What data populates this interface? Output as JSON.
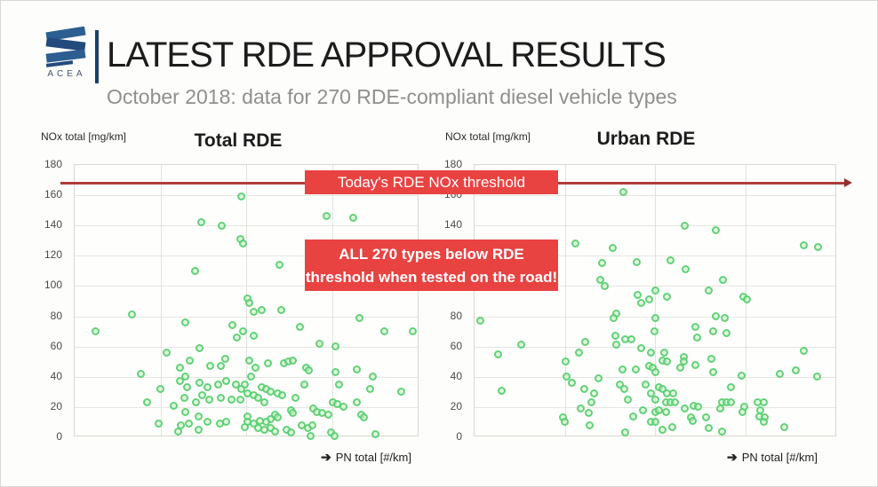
{
  "slide": {
    "logo_text": "ACEA",
    "title": "LATEST RDE APPROVAL RESULTS",
    "subtitle": "October 2018: data for 270 RDE-compliant diesel vehicle types"
  },
  "annotations": {
    "threshold_label": "Today's RDE NOx threshold",
    "callout_line1": "ALL 270 types below RDE",
    "callout_line2": "threshold when tested on the road!",
    "threshold_value_mg_per_km": 168
  },
  "colors": {
    "accent_red_box": "#e84341",
    "threshold_line_red": "#b13c3c",
    "dot_green_ring": "#55cd6e",
    "logo_blue": "#2d5e91",
    "divider_navy": "#1e3f63",
    "subtitle_gray": "#8f8f8f"
  },
  "chart_data": [
    {
      "type": "scatter",
      "title": "Total RDE",
      "ylabel": "NOx total [mg/km]",
      "xlabel": "PN total [#/km]",
      "ylim": [
        0,
        180
      ],
      "yticks": [
        0,
        20,
        40,
        60,
        80,
        100,
        120,
        140,
        160,
        180
      ],
      "x_axis_note": "no x tick labels shown; x coded as percent of axis width",
      "xgrid_pct": [
        25,
        50,
        75
      ],
      "grid": true,
      "legend": "none",
      "threshold_y": 168,
      "points": [
        [
          48.7,
          159
        ],
        [
          36.9,
          142
        ],
        [
          42.8,
          140
        ],
        [
          48.2,
          131
        ],
        [
          49.0,
          128
        ],
        [
          35.1,
          110
        ],
        [
          73.5,
          146
        ],
        [
          81.2,
          145
        ],
        [
          59.8,
          114
        ],
        [
          50.3,
          92
        ],
        [
          16.8,
          81
        ],
        [
          32.2,
          76
        ],
        [
          6.2,
          70
        ],
        [
          46.1,
          74
        ],
        [
          49.2,
          70
        ],
        [
          47.4,
          66
        ],
        [
          26.8,
          56
        ],
        [
          36.3,
          59
        ],
        [
          33.5,
          51
        ],
        [
          43.8,
          52
        ],
        [
          30.7,
          46
        ],
        [
          39.4,
          47
        ],
        [
          42.5,
          47
        ],
        [
          19.3,
          42
        ],
        [
          32.2,
          40
        ],
        [
          36.3,
          36
        ],
        [
          44.3,
          37
        ],
        [
          46.9,
          35
        ],
        [
          30.7,
          37
        ],
        [
          32.7,
          33
        ],
        [
          25.0,
          32
        ],
        [
          38.7,
          33
        ],
        [
          41.8,
          35
        ],
        [
          48.7,
          32
        ],
        [
          50.3,
          29
        ],
        [
          21.1,
          23
        ],
        [
          28.9,
          21
        ],
        [
          32.0,
          26
        ],
        [
          37.1,
          28
        ],
        [
          39.2,
          25
        ],
        [
          35.3,
          23
        ],
        [
          42.5,
          26
        ],
        [
          45.6,
          25
        ],
        [
          48.2,
          25
        ],
        [
          32.2,
          17
        ],
        [
          36.1,
          14
        ],
        [
          24.5,
          9
        ],
        [
          30.9,
          8
        ],
        [
          33.2,
          9
        ],
        [
          38.7,
          10
        ],
        [
          42.3,
          9
        ],
        [
          44.3,
          10
        ],
        [
          50.3,
          14
        ],
        [
          30.2,
          4
        ],
        [
          36.1,
          5
        ],
        [
          50.8,
          89
        ],
        [
          52.1,
          83
        ],
        [
          54.6,
          84
        ],
        [
          60.3,
          84
        ],
        [
          83.0,
          79
        ],
        [
          65.7,
          73
        ],
        [
          52.1,
          67
        ],
        [
          90.2,
          70
        ],
        [
          98.5,
          70
        ],
        [
          71.4,
          62
        ],
        [
          76.0,
          60
        ],
        [
          50.8,
          51
        ],
        [
          56.4,
          49
        ],
        [
          61.1,
          49
        ],
        [
          62.4,
          50
        ],
        [
          63.7,
          51
        ],
        [
          67.5,
          46
        ],
        [
          68.3,
          44
        ],
        [
          52.6,
          46
        ],
        [
          51.5,
          40
        ],
        [
          76.0,
          43
        ],
        [
          82.2,
          45
        ],
        [
          86.9,
          40
        ],
        [
          49.5,
          35
        ],
        [
          77.1,
          35
        ],
        [
          86.1,
          32
        ],
        [
          95.1,
          30
        ],
        [
          54.6,
          33
        ],
        [
          55.9,
          32
        ],
        [
          57.2,
          30
        ],
        [
          59.3,
          29
        ],
        [
          60.6,
          28
        ],
        [
          52.1,
          28
        ],
        [
          53.4,
          26
        ],
        [
          55.2,
          23
        ],
        [
          64.4,
          26
        ],
        [
          67.0,
          35
        ],
        [
          75.3,
          23
        ],
        [
          76.5,
          22
        ],
        [
          78.4,
          20
        ],
        [
          82.2,
          23
        ],
        [
          83.5,
          15
        ],
        [
          84.3,
          13
        ],
        [
          63.1,
          18
        ],
        [
          63.7,
          16
        ],
        [
          69.6,
          19
        ],
        [
          70.6,
          17
        ],
        [
          72.2,
          16
        ],
        [
          74.0,
          15
        ],
        [
          58.5,
          15
        ],
        [
          59.3,
          13
        ],
        [
          57.2,
          12
        ],
        [
          55.9,
          10
        ],
        [
          53.9,
          11
        ],
        [
          52.1,
          9
        ],
        [
          50.3,
          10
        ],
        [
          49.5,
          7
        ],
        [
          53.4,
          6
        ],
        [
          55.4,
          5
        ],
        [
          57.2,
          6
        ],
        [
          58.5,
          4
        ],
        [
          61.9,
          5
        ],
        [
          63.1,
          3
        ],
        [
          66.2,
          8
        ],
        [
          68.0,
          6
        ],
        [
          69.3,
          8
        ],
        [
          74.7,
          3
        ],
        [
          75.8,
          1
        ],
        [
          87.6,
          2
        ],
        [
          68.8,
          1
        ]
      ]
    },
    {
      "type": "scatter",
      "title": "Urban RDE",
      "ylabel": "NOx total [mg/km]",
      "xlabel": "PN total [#/km]",
      "ylim": [
        0,
        180
      ],
      "yticks": [
        0,
        20,
        40,
        60,
        80,
        100,
        120,
        140,
        160,
        180
      ],
      "x_axis_note": "no x tick labels shown; x coded as percent of axis width",
      "xgrid_pct": [
        25,
        50,
        75
      ],
      "grid": true,
      "legend": "none",
      "threshold_y": 168,
      "points": [
        [
          41.2,
          162
        ],
        [
          27.9,
          128
        ],
        [
          38.2,
          125
        ],
        [
          35.3,
          115
        ],
        [
          44.9,
          116
        ],
        [
          34.8,
          104
        ],
        [
          36.0,
          100
        ],
        [
          45.3,
          94
        ],
        [
          48.3,
          91
        ],
        [
          58.3,
          140
        ],
        [
          66.9,
          137
        ],
        [
          91.2,
          127
        ],
        [
          95.1,
          126
        ],
        [
          54.4,
          117
        ],
        [
          58.6,
          111
        ],
        [
          68.9,
          104
        ],
        [
          65.0,
          97
        ],
        [
          53.4,
          93
        ],
        [
          74.5,
          93
        ],
        [
          75.5,
          91
        ],
        [
          50.2,
          97
        ],
        [
          1.5,
          77
        ],
        [
          13.0,
          61
        ],
        [
          6.6,
          55
        ],
        [
          7.4,
          31
        ],
        [
          25.2,
          50
        ],
        [
          25.5,
          40
        ],
        [
          27.0,
          36
        ],
        [
          28.9,
          56
        ],
        [
          30.6,
          63
        ],
        [
          30.4,
          32
        ],
        [
          33.1,
          29
        ],
        [
          32.4,
          23
        ],
        [
          29.4,
          19
        ],
        [
          31.6,
          16
        ],
        [
          24.5,
          13
        ],
        [
          25.0,
          10
        ],
        [
          31.9,
          8
        ],
        [
          34.3,
          39
        ],
        [
          39.2,
          82
        ],
        [
          38.5,
          79
        ],
        [
          39.0,
          67
        ],
        [
          41.7,
          65
        ],
        [
          43.4,
          65
        ],
        [
          39.2,
          61
        ],
        [
          46.3,
          59
        ],
        [
          48.8,
          56
        ],
        [
          40.9,
          45
        ],
        [
          44.6,
          45
        ],
        [
          48.3,
          47
        ],
        [
          49.5,
          46
        ],
        [
          40.2,
          35
        ],
        [
          41.4,
          32
        ],
        [
          42.6,
          25
        ],
        [
          43.9,
          14
        ],
        [
          46.6,
          18
        ],
        [
          47.5,
          35
        ],
        [
          49.0,
          29
        ],
        [
          50.0,
          17
        ],
        [
          49.0,
          10
        ],
        [
          41.7,
          3
        ],
        [
          46.3,
          89
        ],
        [
          50.0,
          79
        ],
        [
          49.8,
          70
        ],
        [
          66.9,
          80
        ],
        [
          69.4,
          79
        ],
        [
          61.3,
          73
        ],
        [
          66.2,
          70
        ],
        [
          69.9,
          69
        ],
        [
          61.8,
          66
        ],
        [
          52.7,
          56
        ],
        [
          52.0,
          51
        ],
        [
          53.4,
          50
        ],
        [
          58.1,
          53
        ],
        [
          58.1,
          50
        ],
        [
          61.3,
          48
        ],
        [
          57.1,
          46
        ],
        [
          50.2,
          43
        ],
        [
          65.7,
          52
        ],
        [
          66.2,
          43
        ],
        [
          74.0,
          41
        ],
        [
          84.6,
          42
        ],
        [
          89.0,
          44
        ],
        [
          91.2,
          57
        ],
        [
          94.9,
          40
        ],
        [
          51.0,
          33
        ],
        [
          52.0,
          32
        ],
        [
          53.4,
          29
        ],
        [
          55.1,
          29
        ],
        [
          53.2,
          23
        ],
        [
          54.4,
          23
        ],
        [
          55.6,
          23
        ],
        [
          50.2,
          25
        ],
        [
          51.0,
          18
        ],
        [
          53.2,
          17
        ],
        [
          58.3,
          19
        ],
        [
          60.8,
          21
        ],
        [
          62.0,
          20
        ],
        [
          71.1,
          33
        ],
        [
          68.6,
          23
        ],
        [
          69.9,
          23
        ],
        [
          71.1,
          23
        ],
        [
          68.1,
          19
        ],
        [
          74.8,
          20
        ],
        [
          74.3,
          17
        ],
        [
          78.4,
          23
        ],
        [
          79.2,
          18
        ],
        [
          78.9,
          14
        ],
        [
          80.4,
          13
        ],
        [
          60.0,
          13
        ],
        [
          60.5,
          11
        ],
        [
          64.2,
          13
        ],
        [
          65.0,
          6
        ],
        [
          68.6,
          4
        ],
        [
          54.7,
          7
        ],
        [
          52.0,
          5
        ],
        [
          50.2,
          10
        ],
        [
          85.8,
          7
        ],
        [
          80.1,
          10
        ],
        [
          80.1,
          23
        ]
      ]
    }
  ]
}
